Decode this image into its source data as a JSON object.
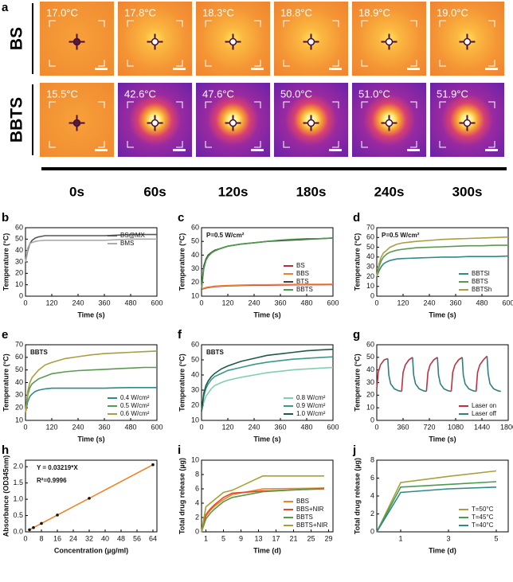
{
  "thermal_images": {
    "panel": "a",
    "times": [
      "0s",
      "60s",
      "120s",
      "180s",
      "240s",
      "300s"
    ],
    "rows": [
      {
        "label": "BS",
        "temps": [
          "17.0°C",
          "17.8°C",
          "18.3°C",
          "18.8°C",
          "18.9°C",
          "19.0°C"
        ]
      },
      {
        "label": "BBTS",
        "temps": [
          "15.5°C",
          "42.6°C",
          "47.6°C",
          "50.0°C",
          "51.0°C",
          "51.9°C"
        ]
      }
    ]
  },
  "chart_data": [
    {
      "type": "line",
      "panel": "b",
      "xlabel": "Time (s)",
      "ylabel": "Temperature (°C)",
      "legend": "upper right",
      "xlim": [
        0,
        600
      ],
      "xticks": [
        0,
        120,
        240,
        360,
        480,
        600
      ],
      "ylim": [
        0,
        60
      ],
      "yticks": [
        0,
        10,
        20,
        30,
        40,
        50,
        60
      ],
      "x": [
        0,
        10,
        20,
        30,
        45,
        60,
        90,
        120,
        180,
        240,
        300,
        360,
        420,
        480,
        540,
        600
      ],
      "series": [
        {
          "name": "BS@MX",
          "color": "#555555",
          "values": [
            30,
            40,
            46,
            49,
            51,
            52,
            53,
            53,
            53,
            53,
            53,
            53,
            53.5,
            54,
            54,
            54
          ]
        },
        {
          "name": "BMS",
          "color": "#aaaaaa",
          "values": [
            30,
            42,
            46,
            47,
            48,
            48.5,
            49,
            49,
            49,
            49,
            49,
            49,
            49.5,
            50,
            50,
            50
          ]
        }
      ]
    },
    {
      "type": "line",
      "panel": "c",
      "xlabel": "Time (s)",
      "ylabel": "Temperature (°C)",
      "legend": "lower right",
      "annotations": [
        "P=0.5 W/cm²"
      ],
      "xlim": [
        0,
        600
      ],
      "xticks": [
        0,
        120,
        240,
        360,
        480,
        600
      ],
      "ylim": [
        10,
        60
      ],
      "yticks": [
        10,
        20,
        30,
        40,
        50,
        60
      ],
      "x": [
        0,
        10,
        20,
        30,
        45,
        60,
        90,
        120,
        180,
        240,
        300,
        360,
        420,
        480,
        540,
        600
      ],
      "series": [
        {
          "name": "BS",
          "color": "#b0303c",
          "values": [
            15,
            15.5,
            16,
            16.3,
            16.6,
            17,
            17.3,
            17.5,
            17.8,
            18,
            18,
            18.2,
            18.3,
            18.4,
            18.4,
            18.5
          ]
        },
        {
          "name": "BBS",
          "color": "#f08030",
          "values": [
            15.3,
            15.8,
            16.3,
            16.6,
            16.9,
            17.3,
            17.6,
            17.8,
            18.1,
            18.3,
            18.3,
            18.5,
            18.6,
            18.7,
            18.7,
            18.8
          ]
        },
        {
          "name": "BTS",
          "color": "#404040",
          "values": [
            15,
            32,
            37,
            40,
            42,
            43.5,
            45,
            46.5,
            48,
            49,
            50,
            50.5,
            51,
            51.5,
            52,
            52.5
          ]
        },
        {
          "name": "BBTS",
          "color": "#4a9a4a",
          "values": [
            15,
            30,
            36,
            39,
            41.5,
            43,
            45,
            46.5,
            48,
            49,
            50,
            51,
            51.5,
            52,
            52,
            52.5
          ]
        }
      ]
    },
    {
      "type": "line",
      "panel": "d",
      "xlabel": "Time (s)",
      "ylabel": "Temperature (°C)",
      "legend": "lower right",
      "annotations": [
        "P=0.5 W/cm²"
      ],
      "xlim": [
        0,
        600
      ],
      "xticks": [
        0,
        120,
        240,
        360,
        480,
        600
      ],
      "ylim": [
        0,
        70
      ],
      "yticks": [
        0,
        10,
        20,
        30,
        40,
        50,
        60,
        70
      ],
      "x": [
        0,
        10,
        20,
        30,
        45,
        60,
        90,
        120,
        180,
        240,
        300,
        360,
        420,
        480,
        540,
        600
      ],
      "series": [
        {
          "name": "BBTSl",
          "color": "#2f8a8a",
          "values": [
            20,
            26,
            30,
            33,
            35,
            36.5,
            38,
            38.5,
            39,
            39.5,
            40,
            40,
            40.5,
            40.5,
            40.5,
            41
          ]
        },
        {
          "name": "BBTS",
          "color": "#5a9a50",
          "values": [
            20,
            30,
            36,
            40,
            43,
            45,
            47,
            48,
            49.5,
            50,
            50.5,
            51,
            51.5,
            51.5,
            52,
            52
          ]
        },
        {
          "name": "BBTSh",
          "color": "#a8a040",
          "values": [
            20,
            33,
            40,
            44,
            47,
            50,
            53,
            54.5,
            56,
            57,
            58,
            58.5,
            59,
            59.5,
            60,
            60.5
          ]
        }
      ]
    },
    {
      "type": "line",
      "panel": "e",
      "xlabel": "Time (s)",
      "ylabel": "Temperature (°C)",
      "legend": "lower right",
      "annotations": [
        "BBTS"
      ],
      "xlim": [
        0,
        600
      ],
      "xticks": [
        0,
        120,
        240,
        360,
        480,
        600
      ],
      "ylim": [
        10,
        70
      ],
      "yticks": [
        10,
        20,
        30,
        40,
        50,
        60,
        70
      ],
      "x": [
        0,
        10,
        20,
        30,
        45,
        60,
        90,
        120,
        180,
        240,
        300,
        360,
        420,
        480,
        540,
        600
      ],
      "series": [
        {
          "name": "0.4 W/cm²",
          "color": "#2f8a8a",
          "values": [
            16,
            25,
            29,
            31,
            33,
            34,
            35,
            35.5,
            35.5,
            35.5,
            35.5,
            35.5,
            35.8,
            36,
            36,
            36
          ]
        },
        {
          "name": "0.5 W/cm²",
          "color": "#5a9a50",
          "values": [
            16,
            30,
            36,
            39,
            41,
            43,
            45,
            47,
            48.5,
            49.5,
            50,
            50.5,
            51,
            51.5,
            52,
            52
          ]
        },
        {
          "name": "0.6 W/cm²",
          "color": "#a8a040",
          "values": [
            16,
            33,
            40,
            44,
            47,
            50,
            54,
            56,
            59,
            60.5,
            62,
            63,
            63.5,
            64,
            64.5,
            65
          ]
        }
      ]
    },
    {
      "type": "line",
      "panel": "f",
      "xlabel": "Time (s)",
      "ylabel": "Temperature (°C)",
      "legend": "lower right",
      "annotations": [
        "BBTS"
      ],
      "xlim": [
        0,
        600
      ],
      "xticks": [
        0,
        120,
        240,
        360,
        480,
        600
      ],
      "ylim": [
        10,
        60
      ],
      "yticks": [
        10,
        20,
        30,
        40,
        50,
        60
      ],
      "x": [
        0,
        10,
        20,
        30,
        45,
        60,
        90,
        120,
        180,
        240,
        300,
        360,
        420,
        480,
        540,
        600
      ],
      "series": [
        {
          "name": "0.8 W/cm²",
          "color": "#7fcfb0",
          "values": [
            16,
            22,
            26,
            28,
            31,
            33,
            35,
            36.5,
            38.5,
            40,
            41.5,
            42.5,
            43.5,
            44,
            44.5,
            45
          ]
        },
        {
          "name": "0.9 W/cm²",
          "color": "#3a9a8a",
          "values": [
            16,
            26,
            31,
            34,
            37,
            39,
            41,
            43,
            45,
            47,
            48.5,
            49.5,
            50.5,
            51,
            51.5,
            52
          ]
        },
        {
          "name": "1.0 W/cm²",
          "color": "#1e5a48",
          "values": [
            16,
            28,
            33,
            36,
            39,
            41,
            44,
            46,
            49,
            51,
            53,
            54,
            55,
            56,
            56.5,
            57
          ]
        }
      ]
    },
    {
      "type": "line",
      "panel": "g",
      "xlabel": "Time (s)",
      "ylabel": "Temperature (°C)",
      "legend": "lower right",
      "xlim": [
        0,
        1800
      ],
      "xticks": [
        0,
        360,
        720,
        1080,
        1440,
        1800
      ],
      "ylim": [
        0,
        60
      ],
      "yticks": [
        0,
        10,
        20,
        30,
        40,
        50,
        60
      ],
      "x": [
        0,
        20,
        50,
        100,
        150,
        165,
        190,
        240,
        300,
        340,
        360,
        390,
        440,
        490,
        505,
        530,
        580,
        640,
        680,
        700,
        730,
        780,
        830,
        845,
        870,
        920,
        980,
        1020,
        1040,
        1070,
        1120,
        1170,
        1185,
        1210,
        1260,
        1320,
        1360,
        1380,
        1410,
        1460,
        1510,
        1525,
        1550,
        1600,
        1660,
        1700
      ],
      "series": [
        {
          "name": "Laser on",
          "color": "#c03040",
          "values": [
            25,
            38,
            44,
            48,
            49,
            null,
            null,
            null,
            null,
            23,
            38,
            44,
            48,
            50,
            null,
            null,
            null,
            null,
            23,
            38,
            44,
            48,
            50,
            null,
            null,
            null,
            null,
            23,
            38,
            44,
            48,
            50,
            null,
            null,
            null,
            null,
            23,
            38,
            44,
            48,
            51,
            null,
            null,
            null,
            null,
            null
          ]
        },
        {
          "name": "Laser off",
          "color": "#2f7f7f",
          "values": [
            null,
            null,
            null,
            null,
            49,
            36,
            29,
            25,
            23.5,
            23,
            null,
            null,
            null,
            50,
            36,
            29,
            25,
            23.5,
            23,
            null,
            null,
            null,
            50,
            36,
            29,
            25,
            23.5,
            23,
            null,
            null,
            null,
            50,
            36,
            29,
            25,
            23.5,
            23,
            null,
            null,
            null,
            51,
            37,
            29,
            25,
            23.5,
            23
          ]
        }
      ]
    },
    {
      "type": "scatter",
      "panel": "h",
      "xlabel": "Concentration (µg/ml)",
      "ylabel": "Absorbance (OD345nm)",
      "annotations": [
        "Y = 0.03219*X",
        "R²=0.9996"
      ],
      "xlim": [
        0,
        66
      ],
      "xticks": [
        0,
        8,
        16,
        24,
        32,
        40,
        48,
        56,
        64
      ],
      "ylim": [
        0,
        2.2
      ],
      "yticks": [
        {
          "value": 0,
          "label": "0.0"
        },
        0.5,
        {
          "value": 1,
          "label": "1.0"
        },
        1.5,
        {
          "value": 2,
          "label": "2.0"
        }
      ],
      "x": [
        2,
        4,
        8,
        16,
        32,
        64
      ],
      "values": [
        0.064,
        0.129,
        0.258,
        0.515,
        1.03,
        2.06
      ],
      "color": "#111111",
      "line_color": "#f08020"
    },
    {
      "type": "line",
      "panel": "i",
      "xlabel": "Time (d)",
      "ylabel": "Total drug release (µg)",
      "legend": "lower right",
      "xlim": [
        0,
        30
      ],
      "xticks": [
        1,
        5,
        9,
        13,
        17,
        21,
        25,
        29
      ],
      "ylim": [
        0,
        10
      ],
      "yticks": [
        0,
        2,
        4,
        6,
        8,
        10
      ],
      "x": [
        0,
        1,
        2,
        3,
        5,
        7,
        14,
        28
      ],
      "series": [
        {
          "name": "BBS",
          "color": "#f08020",
          "values": [
            0,
            2.2,
            3.0,
            3.6,
            4.5,
            5.2,
            6.0,
            6.1
          ]
        },
        {
          "name": "BBS+NIR",
          "color": "#e04830",
          "values": [
            0,
            2.4,
            3.2,
            3.8,
            4.8,
            5.4,
            5.7,
            6.0
          ]
        },
        {
          "name": "BBTS",
          "color": "#5a9a40",
          "values": [
            0,
            1.8,
            2.6,
            3.2,
            4.2,
            4.8,
            5.6,
            6.1
          ]
        },
        {
          "name": "BBTS+NIR",
          "color": "#a8a030",
          "values": [
            0,
            3.5,
            4.0,
            4.5,
            5.5,
            5.8,
            7.8,
            7.8
          ]
        }
      ]
    },
    {
      "type": "line",
      "panel": "j",
      "xlabel": "Time (d)",
      "ylabel": "Total drug release (µg)",
      "legend": "lower right",
      "xlim": [
        0,
        5.5
      ],
      "xticks": [
        1,
        3,
        5
      ],
      "ylim": [
        0,
        8
      ],
      "yticks": [
        0,
        2,
        4,
        6,
        8
      ],
      "x": [
        0,
        1,
        3,
        5
      ],
      "series": [
        {
          "name": "T=50°C",
          "color": "#a8a040",
          "values": [
            0,
            5.5,
            6.2,
            6.8
          ]
        },
        {
          "name": "T=45°C",
          "color": "#4a9a50",
          "values": [
            0,
            5.0,
            5.3,
            5.6
          ]
        },
        {
          "name": "T=40°C",
          "color": "#2f8a8a",
          "values": [
            0,
            4.4,
            4.8,
            5.0
          ]
        }
      ]
    }
  ]
}
